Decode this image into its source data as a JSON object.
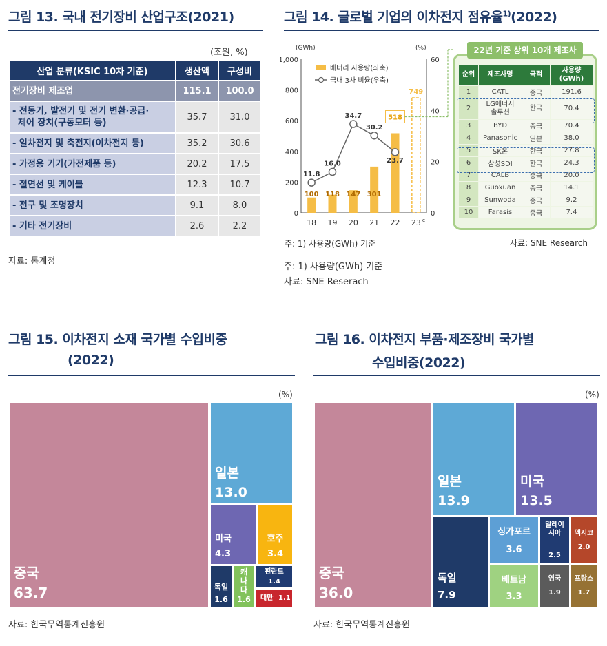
{
  "colors": {
    "navy": "#1f3a68",
    "bar": "#f5bd46",
    "china": "#c4879a",
    "japan": "#5ea9d6",
    "usa": "#6e67b2",
    "australia": "#f8b510",
    "korea": "#1f3a68",
    "canada": "#82c25b",
    "finland": "#203b72",
    "taiwan": "#c8262d",
    "singapore": "#5d9fd5",
    "vietnam": "#9fd281",
    "malaysia": "#203b72",
    "mexico": "#b5472a",
    "uk": "#5b5b5b",
    "france": "#967234"
  },
  "fig13": {
    "title": "그림 13. 국내 전기장비 산업구조(2021)",
    "unit": "(조원, %)",
    "headers": [
      "산업 분류(KSIC 10차 기준)",
      "생산액",
      "구성비"
    ],
    "rows": [
      {
        "cat": "전기장비 제조업",
        "prod": "115.1",
        "share": "100.0"
      },
      {
        "cat": "- 전동기, 발전기 및 전기 변환·공급·",
        "cat2": "제어 장치(구동모터 등)",
        "prod": "35.7",
        "share": "31.0"
      },
      {
        "cat": "- 일차전지 및 축전지(이차전지 등)",
        "prod": "35.2",
        "share": "30.6"
      },
      {
        "cat": "- 가정용 기기(가전제품 등)",
        "prod": "20.2",
        "share": "17.5"
      },
      {
        "cat": "- 절연선 및 케이블",
        "prod": "12.3",
        "share": "10.7"
      },
      {
        "cat": "- 전구 및 조명장치",
        "prod": "9.1",
        "share": "8.0"
      },
      {
        "cat": "- 기타 전기장비",
        "prod": "2.6",
        "share": "2.2"
      }
    ],
    "source": "자료: 통계청"
  },
  "fig14": {
    "title": "그림 14. 글로벌 기업의 이차전지 점유율",
    "title_sup": "1)",
    "title_year": "(2022)",
    "note": "주: 1) 사용량(GWh) 기준",
    "source": "자료: SNE Reserach",
    "inner_note": "주: 1) 사용량(GWh) 기준",
    "inner_source": "자료: SNE Research",
    "rank_header": "22년 기준 상위 10개 제조사",
    "rank_cols": [
      "순위",
      "제조사명",
      "국적",
      "사용량 (GWh)"
    ],
    "ranks": [
      {
        "rank": "1",
        "name": "CATL",
        "nat": "중국",
        "use": "191.6"
      },
      {
        "rank": "2",
        "name": "LG에너지",
        "name2": "솔루션",
        "nat": "한국",
        "use": "70.4"
      },
      {
        "rank": "3",
        "name": "BYD",
        "nat": "중국",
        "use": "70.4"
      },
      {
        "rank": "4",
        "name": "Panasonic",
        "nat": "일본",
        "use": "38.0"
      },
      {
        "rank": "5",
        "name": "SK온",
        "nat": "한국",
        "use": "27.8"
      },
      {
        "rank": "6",
        "name": "삼성SDI",
        "nat": "한국",
        "use": "24.3"
      },
      {
        "rank": "7",
        "name": "CALB",
        "nat": "중국",
        "use": "20.0"
      },
      {
        "rank": "8",
        "name": "Guoxuan",
        "nat": "중국",
        "use": "14.1"
      },
      {
        "rank": "9",
        "name": "Sunwoda",
        "nat": "중국",
        "use": "9.2"
      },
      {
        "rank": "10",
        "name": "Farasis",
        "nat": "중국",
        "use": "7.4"
      }
    ]
  },
  "fig15": {
    "title_line1": "그림 15. 이차전지 소재 국가별 수입비중",
    "title_line2": "(2022)",
    "unit": "(%)",
    "source": "자료: 한국무역통계진흥원"
  },
  "fig16": {
    "title_line1": "그림 16. 이차전지 부품·제조장비 국가별",
    "title_line2": "수입비중(2022)",
    "unit": "(%)",
    "source": "자료: 한국무역통계진흥원"
  },
  "chart_data": [
    {
      "type": "bar",
      "categories": [
        "18",
        "19",
        "20",
        "21",
        "22",
        "23e"
      ],
      "category_labels": [
        "18",
        "19",
        "20",
        "21",
        "22",
        "23"
      ],
      "forecast_mark": "e",
      "y_unit": "(GWh)",
      "y2_unit": "(%)",
      "ylim": [
        0,
        1000
      ],
      "y2lim": [
        0,
        60
      ],
      "yticks": [
        "0",
        "200",
        "400",
        "600",
        "800",
        "1,000"
      ],
      "y2ticks": [
        "0",
        "20",
        "40",
        "60"
      ],
      "series": [
        {
          "name": "배터리 사용량(좌축)",
          "type": "bar",
          "values": [
            100,
            118,
            147,
            301,
            518,
            749
          ]
        },
        {
          "name": "국내 3사 비율(우축)",
          "type": "line",
          "values": [
            11.8,
            16.0,
            34.7,
            30.2,
            23.7,
            null
          ]
        }
      ],
      "legend": "top-left"
    },
    {
      "type": "treemap",
      "unit": "(%)",
      "items": [
        {
          "name": "중국",
          "value": 63.7
        },
        {
          "name": "일본",
          "value": 13.0
        },
        {
          "name": "미국",
          "value": 4.3
        },
        {
          "name": "호주",
          "value": 3.4
        },
        {
          "name": "독일",
          "value": 1.6
        },
        {
          "name": "캐나다",
          "value": 1.6
        },
        {
          "name": "핀란드",
          "value": 1.4
        },
        {
          "name": "대만",
          "value": 1.1
        }
      ]
    },
    {
      "type": "treemap",
      "unit": "(%)",
      "items": [
        {
          "name": "중국",
          "value": 36.0
        },
        {
          "name": "일본",
          "value": 13.9
        },
        {
          "name": "미국",
          "value": 13.5
        },
        {
          "name": "독일",
          "value": 7.9
        },
        {
          "name": "싱가포르",
          "value": 3.6
        },
        {
          "name": "베트남",
          "value": 3.3
        },
        {
          "name": "말레이시아",
          "value": 2.5
        },
        {
          "name": "멕시코",
          "value": 2.0
        },
        {
          "name": "영국",
          "value": 1.9
        },
        {
          "name": "프랑스",
          "value": 1.7
        }
      ]
    }
  ]
}
